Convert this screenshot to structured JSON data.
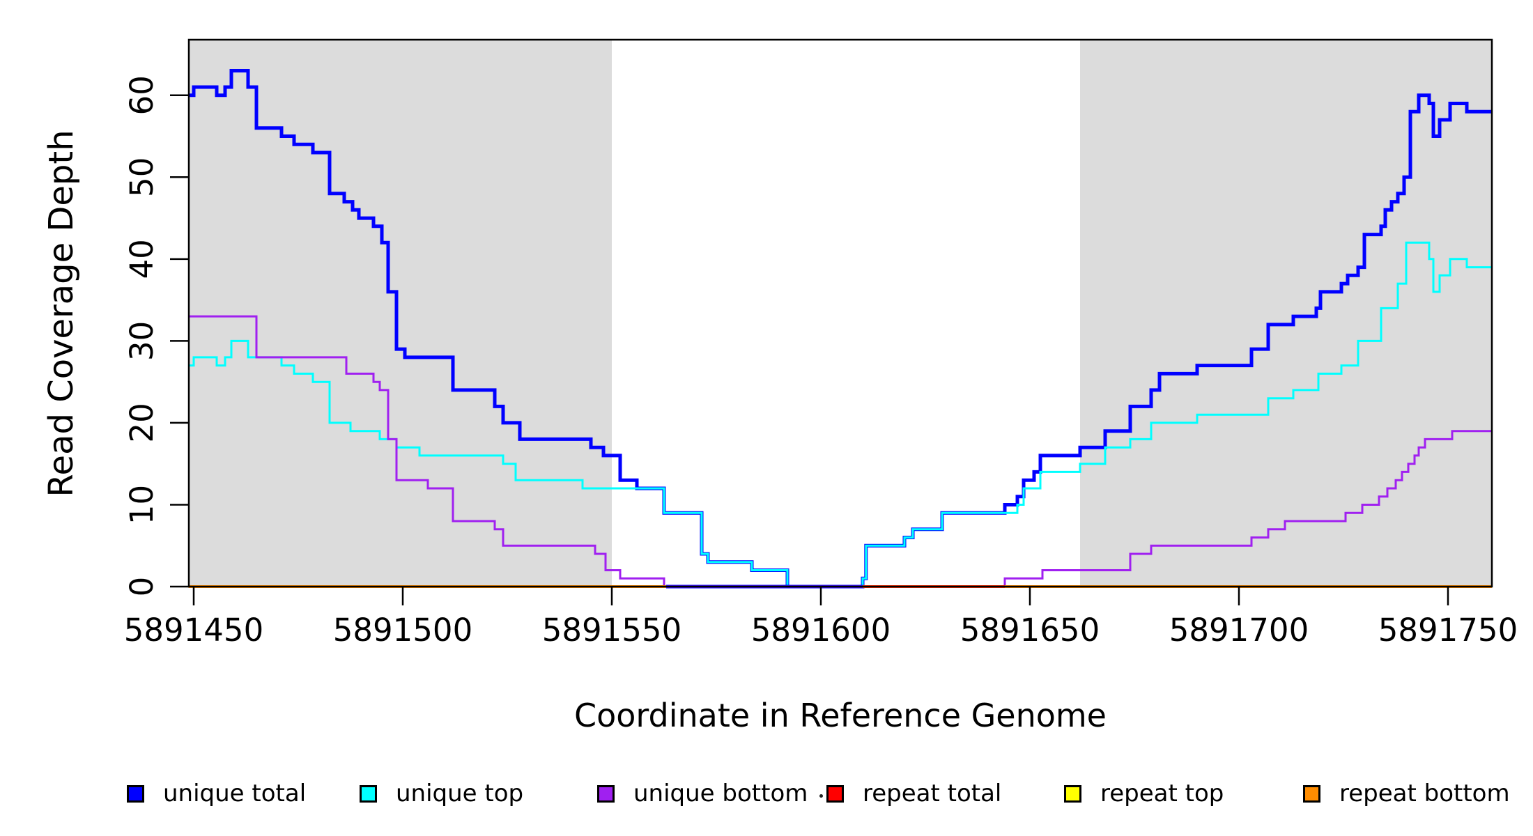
{
  "chart_data": {
    "type": "line",
    "subtype": "step-coverage-plot",
    "title": "",
    "xlabel": "Coordinate in Reference Genome",
    "ylabel": "Read Coverage Depth",
    "x_ticks": [
      5891450,
      5891500,
      5891550,
      5891600,
      5891650,
      5891700,
      5891750
    ],
    "y_ticks": [
      0,
      10,
      20,
      30,
      40,
      50,
      60
    ],
    "xlim": [
      5891448.8,
      5891760.5
    ],
    "ylim": [
      0,
      66.8
    ],
    "grid": "off",
    "legend_position": "bottom",
    "background_color": "#ffffff",
    "shaded_region_color": "#DCDCDC",
    "background_regions": [
      {
        "name": "left-shaded-region",
        "from": 5891448.8,
        "to": 5891550
      },
      {
        "name": "right-shaded-region",
        "from": 5891662,
        "to": 5891760.5
      }
    ],
    "legend": [
      {
        "label": "unique total",
        "color": "#0000FF"
      },
      {
        "label": "unique top",
        "color": "#00FFFF"
      },
      {
        "label": "unique bottom",
        "color": "#A020F0"
      },
      {
        "label": "repeat total",
        "color": "#FF0000"
      },
      {
        "label": "repeat top",
        "color": "#FFFF00"
      },
      {
        "label": "repeat bottom",
        "color": "#FF8C00"
      }
    ],
    "series": [
      {
        "name": "unique total",
        "color": "#0000FF",
        "width": 5,
        "steps": [
          [
            5891448.8,
            60
          ],
          [
            5891450,
            61
          ],
          [
            5891455.5,
            60
          ],
          [
            5891457.5,
            61
          ],
          [
            5891459,
            63
          ],
          [
            5891463,
            61
          ],
          [
            5891465,
            56
          ],
          [
            5891471,
            55
          ],
          [
            5891474,
            54
          ],
          [
            5891478.5,
            53
          ],
          [
            5891482.5,
            48
          ],
          [
            5891486,
            47
          ],
          [
            5891488,
            46
          ],
          [
            5891489.5,
            45
          ],
          [
            5891493,
            44
          ],
          [
            5891495,
            42
          ],
          [
            5891496.5,
            36
          ],
          [
            5891498.5,
            29
          ],
          [
            5891500.5,
            28
          ],
          [
            5891512,
            24
          ],
          [
            5891522,
            22
          ],
          [
            5891524,
            20
          ],
          [
            5891528,
            18
          ],
          [
            5891545,
            17
          ],
          [
            5891548,
            16
          ],
          [
            5891552,
            13
          ],
          [
            5891556,
            12
          ],
          [
            5891562.5,
            9
          ],
          [
            5891571.5,
            4
          ],
          [
            5891573,
            3
          ],
          [
            5891583.5,
            2
          ],
          [
            5891592,
            0
          ],
          [
            5891610,
            1
          ],
          [
            5891610.8,
            5
          ],
          [
            5891620,
            6
          ],
          [
            5891622,
            7
          ],
          [
            5891629,
            9
          ],
          [
            5891644,
            10
          ],
          [
            5891647,
            11
          ],
          [
            5891648.5,
            13
          ],
          [
            5891651,
            14
          ],
          [
            5891652.5,
            16
          ],
          [
            5891662,
            17
          ],
          [
            5891668,
            19
          ],
          [
            5891674,
            22
          ],
          [
            5891679,
            24
          ],
          [
            5891681,
            26
          ],
          [
            5891690,
            27
          ],
          [
            5891703,
            29
          ],
          [
            5891707,
            32
          ],
          [
            5891713,
            33
          ],
          [
            5891718.5,
            34
          ],
          [
            5891719.5,
            36
          ],
          [
            5891724.5,
            37
          ],
          [
            5891726,
            38
          ],
          [
            5891728.5,
            39
          ],
          [
            5891730,
            43
          ],
          [
            5891734,
            44
          ],
          [
            5891735,
            46
          ],
          [
            5891736.5,
            47
          ],
          [
            5891738,
            48
          ],
          [
            5891739.5,
            50
          ],
          [
            5891741,
            58
          ],
          [
            5891743,
            60
          ],
          [
            5891745.5,
            59
          ],
          [
            5891746.5,
            55
          ],
          [
            5891748,
            57
          ],
          [
            5891750.5,
            59
          ],
          [
            5891754.5,
            58
          ]
        ]
      },
      {
        "name": "unique top",
        "color": "#00FFFF",
        "width": 3,
        "steps": [
          [
            5891448.8,
            27
          ],
          [
            5891450,
            28
          ],
          [
            5891455.5,
            27
          ],
          [
            5891457.5,
            28
          ],
          [
            5891459,
            30
          ],
          [
            5891463,
            28
          ],
          [
            5891471,
            27
          ],
          [
            5891474,
            26
          ],
          [
            5891478.5,
            25
          ],
          [
            5891482.5,
            20
          ],
          [
            5891487.5,
            19
          ],
          [
            5891494.5,
            18
          ],
          [
            5891498.5,
            17
          ],
          [
            5891504,
            16
          ],
          [
            5891524,
            15
          ],
          [
            5891527,
            13
          ],
          [
            5891543,
            12
          ],
          [
            5891562.5,
            9
          ],
          [
            5891571.5,
            4
          ],
          [
            5891573,
            3
          ],
          [
            5891583.5,
            2
          ],
          [
            5891592,
            0
          ],
          [
            5891610,
            1
          ],
          [
            5891610.8,
            5
          ],
          [
            5891620,
            6
          ],
          [
            5891622,
            7
          ],
          [
            5891629,
            9
          ],
          [
            5891647,
            10
          ],
          [
            5891648.5,
            12
          ],
          [
            5891652.5,
            14
          ],
          [
            5891662,
            15
          ],
          [
            5891668,
            17
          ],
          [
            5891674,
            18
          ],
          [
            5891679,
            20
          ],
          [
            5891690,
            21
          ],
          [
            5891707,
            23
          ],
          [
            5891713,
            24
          ],
          [
            5891719,
            26
          ],
          [
            5891724.5,
            27
          ],
          [
            5891728.5,
            30
          ],
          [
            5891734,
            34
          ],
          [
            5891738,
            37
          ],
          [
            5891740,
            42
          ],
          [
            5891745.5,
            40
          ],
          [
            5891746.5,
            36
          ],
          [
            5891748,
            38
          ],
          [
            5891750.5,
            40
          ],
          [
            5891754.5,
            39
          ]
        ]
      },
      {
        "name": "unique bottom",
        "color": "#A020F0",
        "width": 3,
        "steps": [
          [
            5891448.8,
            33
          ],
          [
            5891465,
            28
          ],
          [
            5891486.5,
            26
          ],
          [
            5891493,
            25
          ],
          [
            5891494.5,
            24
          ],
          [
            5891496.5,
            18
          ],
          [
            5891498.5,
            13
          ],
          [
            5891506,
            12
          ],
          [
            5891512,
            8
          ],
          [
            5891522,
            7
          ],
          [
            5891524,
            5
          ],
          [
            5891546,
            4
          ],
          [
            5891548.5,
            2
          ],
          [
            5891552,
            1
          ],
          [
            5891562.5,
            0
          ],
          [
            5891644,
            1
          ],
          [
            5891653,
            2
          ],
          [
            5891674,
            4
          ],
          [
            5891679,
            5
          ],
          [
            5891703,
            6
          ],
          [
            5891707,
            7
          ],
          [
            5891711,
            8
          ],
          [
            5891725.5,
            9
          ],
          [
            5891729.5,
            10
          ],
          [
            5891733.5,
            11
          ],
          [
            5891735.5,
            12
          ],
          [
            5891737.5,
            13
          ],
          [
            5891739,
            14
          ],
          [
            5891740.5,
            15
          ],
          [
            5891742,
            16
          ],
          [
            5891743,
            17
          ],
          [
            5891744.5,
            18
          ],
          [
            5891751,
            19
          ]
        ]
      },
      {
        "name": "repeat total",
        "color": "#FF0000",
        "width": 3.5,
        "steps": [
          [
            5891448.8,
            0
          ]
        ]
      },
      {
        "name": "repeat top",
        "color": "#FFFF00",
        "width": 3,
        "steps": [
          [
            5891448.8,
            0
          ]
        ]
      },
      {
        "name": "repeat bottom",
        "color": "#FF8C00",
        "width": 4,
        "steps": [
          [
            5891448.8,
            0
          ]
        ]
      }
    ],
    "baseline_overlays": [
      {
        "name": "unique-lines-at-zero",
        "from": 5891563,
        "to": 5891610,
        "layers": [
          {
            "color": "#0000FF",
            "width": 5
          },
          {
            "color": "#A020F0",
            "width": 3
          }
        ]
      },
      {
        "name": "repeat-red-at-zero",
        "from": 5891610,
        "to": 5891644,
        "layers": [
          {
            "color": "#FF0000",
            "width": 3.5
          }
        ]
      }
    ]
  }
}
